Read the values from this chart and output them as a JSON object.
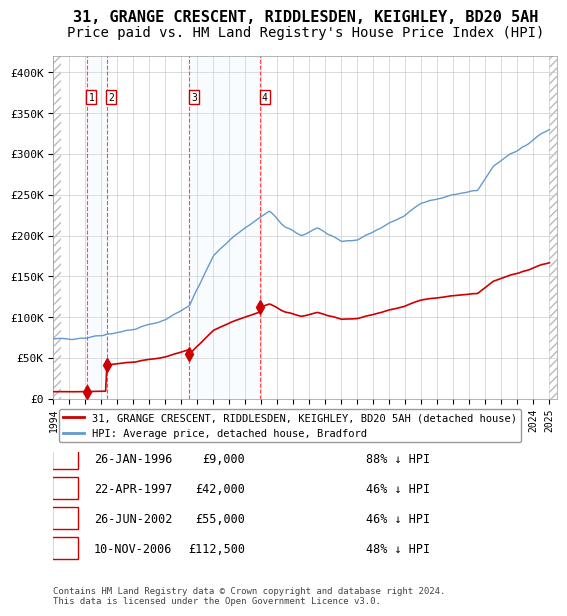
{
  "title": "31, GRANGE CRESCENT, RIDDLESDEN, KEIGHLEY, BD20 5AH",
  "subtitle": "Price paid vs. HM Land Registry's House Price Index (HPI)",
  "legend_property": "31, GRANGE CRESCENT, RIDDLESDEN, KEIGHLEY, BD20 5AH (detached house)",
  "legend_hpi": "HPI: Average price, detached house, Bradford",
  "footer": "Contains HM Land Registry data © Crown copyright and database right 2024.\nThis data is licensed under the Open Government Licence v3.0.",
  "transactions": [
    {
      "num": 1,
      "date": "1996-01-26",
      "price": 9000,
      "label": "26-JAN-1996",
      "pct": "88% ↓ HPI"
    },
    {
      "num": 2,
      "date": "1997-04-22",
      "price": 42000,
      "label": "22-APR-1997",
      "pct": "46% ↓ HPI"
    },
    {
      "num": 3,
      "date": "2002-06-26",
      "price": 55000,
      "label": "26-JUN-2002",
      "pct": "46% ↓ HPI"
    },
    {
      "num": 4,
      "date": "2006-11-10",
      "price": 112500,
      "label": "10-NOV-2006",
      "pct": "48% ↓ HPI"
    }
  ],
  "property_color": "#cc0000",
  "hpi_color": "#6699cc",
  "background_hatch_color": "#e8e8e8",
  "shade_color": "#ddeeff",
  "grid_color": "#cccccc",
  "annotation_box_color": "#cc0000",
  "ylim": [
    0,
    420000
  ],
  "xlabel_fontsize": 8,
  "title_fontsize": 11,
  "subtitle_fontsize": 10
}
